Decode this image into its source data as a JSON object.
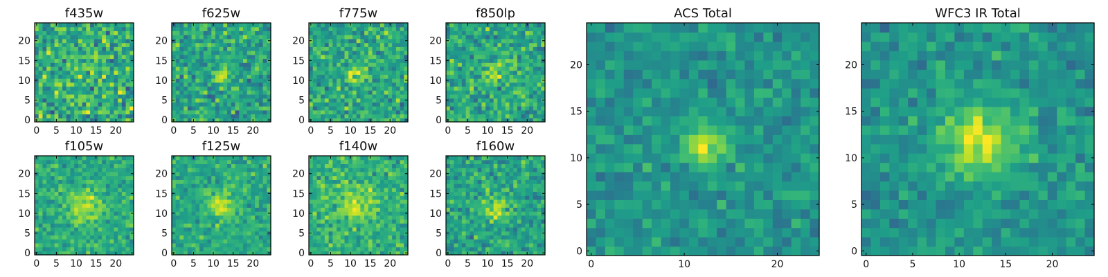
{
  "colormap": "viridis",
  "image_size": 25,
  "colors": {
    "viridis": [
      "#440154",
      "#482878",
      "#3e4989",
      "#31688e",
      "#26828e",
      "#1f9e89",
      "#35b779",
      "#6ece58",
      "#b5de2b",
      "#fde725"
    ],
    "axes_edge": "#000000",
    "text": "#111111"
  },
  "chart_data": [
    {
      "type": "heatmap",
      "title": "f435w",
      "xticks": [
        "0",
        "5",
        "10",
        "15",
        "20"
      ],
      "yticks": [
        "0",
        "5",
        "10",
        "15",
        "20"
      ],
      "xlim": [
        0,
        24
      ],
      "ylim": [
        0,
        24
      ],
      "source_peak": [
        11.5,
        11
      ],
      "source_sigma": 1.2,
      "source_amplitude": 0.18,
      "background_level": 0.62,
      "noise_level": 0.28,
      "grid": false
    },
    {
      "type": "heatmap",
      "title": "f625w",
      "xticks": [
        "0",
        "5",
        "10",
        "15",
        "20"
      ],
      "yticks": [
        "0",
        "5",
        "10",
        "15",
        "20"
      ],
      "xlim": [
        0,
        24
      ],
      "ylim": [
        0,
        24
      ],
      "source_peak": [
        12,
        11.5
      ],
      "source_sigma": 1.4,
      "source_amplitude": 0.35,
      "background_level": 0.58,
      "noise_level": 0.22,
      "grid": false
    },
    {
      "type": "heatmap",
      "title": "f775w",
      "xticks": [
        "0",
        "5",
        "10",
        "15",
        "20"
      ],
      "yticks": [
        "0",
        "5",
        "10",
        "15",
        "20"
      ],
      "xlim": [
        0,
        24
      ],
      "ylim": [
        0,
        24
      ],
      "source_peak": [
        11.5,
        11.5
      ],
      "source_sigma": 1.6,
      "source_amplitude": 0.3,
      "background_level": 0.6,
      "noise_level": 0.22,
      "grid": false
    },
    {
      "type": "heatmap",
      "title": "f850lp",
      "xticks": [
        "0",
        "5",
        "10",
        "15",
        "20"
      ],
      "yticks": [
        "0",
        "5",
        "10",
        "15",
        "20"
      ],
      "xlim": [
        0,
        24
      ],
      "ylim": [
        0,
        24
      ],
      "source_peak": [
        11.5,
        11.5
      ],
      "source_sigma": 1.6,
      "source_amplitude": 0.3,
      "background_level": 0.6,
      "noise_level": 0.22,
      "grid": false
    },
    {
      "type": "heatmap",
      "title": "f105w",
      "xticks": [
        "0",
        "5",
        "10",
        "15",
        "20"
      ],
      "yticks": [
        "0",
        "5",
        "10",
        "15",
        "20"
      ],
      "xlim": [
        0,
        24
      ],
      "ylim": [
        0,
        24
      ],
      "source_peak": [
        12,
        12
      ],
      "source_sigma": 3.0,
      "source_amplitude": 0.28,
      "background_level": 0.62,
      "noise_level": 0.16,
      "grid": false
    },
    {
      "type": "heatmap",
      "title": "f125w",
      "xticks": [
        "0",
        "5",
        "10",
        "15",
        "20"
      ],
      "yticks": [
        "0",
        "5",
        "10",
        "15",
        "20"
      ],
      "xlim": [
        0,
        24
      ],
      "ylim": [
        0,
        24
      ],
      "source_peak": [
        12,
        12
      ],
      "source_sigma": 2.8,
      "source_amplitude": 0.28,
      "background_level": 0.6,
      "noise_level": 0.16,
      "grid": false
    },
    {
      "type": "heatmap",
      "title": "f140w",
      "xticks": [
        "0",
        "5",
        "10",
        "15",
        "20"
      ],
      "yticks": [
        "0",
        "5",
        "10",
        "15",
        "20"
      ],
      "xlim": [
        0,
        24
      ],
      "ylim": [
        0,
        24
      ],
      "source_peak": [
        11.5,
        12
      ],
      "source_sigma": 3.2,
      "source_amplitude": 0.22,
      "background_level": 0.64,
      "noise_level": 0.18,
      "grid": false
    },
    {
      "type": "heatmap",
      "title": "f160w",
      "xticks": [
        "0",
        "5",
        "10",
        "15",
        "20"
      ],
      "yticks": [
        "0",
        "5",
        "10",
        "15",
        "20"
      ],
      "xlim": [
        0,
        24
      ],
      "ylim": [
        0,
        24
      ],
      "source_peak": [
        12,
        11
      ],
      "source_sigma": 2.6,
      "source_amplitude": 0.26,
      "background_level": 0.58,
      "noise_level": 0.2,
      "grid": false
    },
    {
      "type": "heatmap",
      "title": "ACS Total",
      "xticks": [
        "0",
        "10",
        "20"
      ],
      "yticks": [
        "0",
        "5",
        "10",
        "15",
        "20"
      ],
      "xlim": [
        0,
        24
      ],
      "ylim": [
        0,
        24
      ],
      "source_peak": [
        12,
        11.5
      ],
      "source_sigma": 1.5,
      "source_amplitude": 0.45,
      "background_level": 0.52,
      "noise_level": 0.14,
      "grid": false
    },
    {
      "type": "heatmap",
      "title": "WFC3 IR Total",
      "xticks": [
        "0",
        "5",
        "10",
        "15",
        "20"
      ],
      "yticks": [
        "0",
        "5",
        "10",
        "15",
        "20"
      ],
      "xlim": [
        0,
        24
      ],
      "ylim": [
        0,
        24
      ],
      "source_peak": [
        12,
        12
      ],
      "source_sigma": 2.8,
      "source_amplitude": 0.4,
      "background_level": 0.52,
      "noise_level": 0.14,
      "grid": false
    }
  ]
}
